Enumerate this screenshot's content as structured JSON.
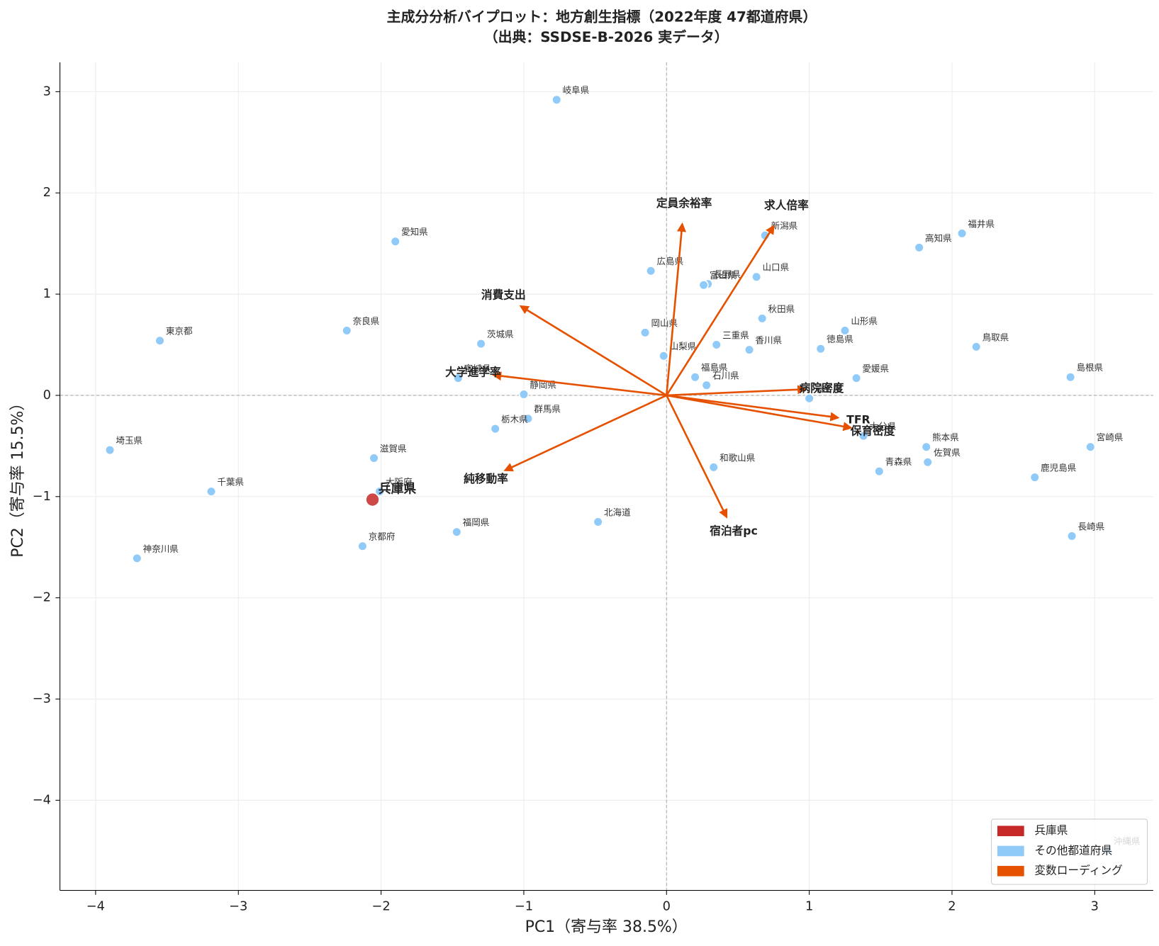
{
  "chart_data": {
    "type": "biplot",
    "title": "主成分分析バイプロット：地方創生指標（2022年度 47都道府県）",
    "subtitle": "（出典：SSDSE-B-2026 実データ）",
    "x_label": "PC1（寄与率 38.5%）",
    "y_label": "PC2（寄与率 15.5%）",
    "xlim": [
      -4.25,
      3.41
    ],
    "ylim": [
      -4.89,
      3.29
    ],
    "xticks": [
      {
        "value": -4,
        "label": "−4"
      },
      {
        "value": -3,
        "label": "−3"
      },
      {
        "value": -2,
        "label": "−2"
      },
      {
        "value": -1,
        "label": "−1"
      },
      0,
      1,
      2,
      3
    ],
    "yticks": [
      {
        "value": -4,
        "label": "−4"
      },
      {
        "value": -3,
        "label": "−3"
      },
      {
        "value": -2,
        "label": "−2"
      },
      {
        "value": -1,
        "label": "−1"
      },
      0,
      1,
      2,
      3
    ],
    "grid": true,
    "legend": "lower right",
    "series": [
      {
        "name": "兵庫県",
        "color": "#c62828",
        "labels": [
          "兵庫県"
        ],
        "x": [
          -2.06
        ],
        "y": [
          -1.03
        ]
      },
      {
        "name": "その他都道府県",
        "color": "#90caf9",
        "labels": [
          "岐阜県",
          "愛知県",
          "東京都",
          "奈良県",
          "茨城県",
          "宮城県",
          "静岡県",
          "群馬県",
          "栃木県",
          "埼玉県",
          "滋賀県",
          "千葉県",
          "大阪府",
          "神奈川県",
          "京都府",
          "福岡県",
          "北海道",
          "広島県",
          "岡山県",
          "山梨県",
          "長野県",
          "富山県",
          "山口県",
          "新潟県",
          "秋田県",
          "三重県",
          "香川県",
          "福島県",
          "石川県",
          "山形県",
          "徳島県",
          "愛媛県",
          "岩手県",
          "大分県",
          "和歌山県",
          "青森県",
          "熊本県",
          "佐賀県",
          "高知県",
          "福井県",
          "鳥取県",
          "島根県",
          "宮崎県",
          "鹿児島県",
          "長崎県",
          "沖縄県"
        ],
        "x": [
          -0.77,
          -1.9,
          -3.55,
          -2.24,
          -1.3,
          -1.46,
          -1.0,
          -0.97,
          -1.2,
          -3.9,
          -2.05,
          -3.19,
          -2.01,
          -3.71,
          -2.13,
          -1.47,
          -0.48,
          -0.11,
          -0.15,
          -0.02,
          0.29,
          0.26,
          0.63,
          0.69,
          0.67,
          0.35,
          0.58,
          0.2,
          0.28,
          1.25,
          1.08,
          1.33,
          1.0,
          1.38,
          0.33,
          1.49,
          1.82,
          1.83,
          1.77,
          2.07,
          2.17,
          2.83,
          2.97,
          2.58,
          2.84,
          3.09
        ],
        "y": [
          2.92,
          1.52,
          0.54,
          0.64,
          0.51,
          0.17,
          0.01,
          -0.23,
          -0.33,
          -0.54,
          -0.62,
          -0.95,
          -0.95,
          -1.61,
          -1.49,
          -1.35,
          -1.25,
          1.23,
          0.62,
          0.39,
          1.1,
          1.09,
          1.17,
          1.58,
          0.76,
          0.5,
          0.45,
          0.18,
          0.1,
          0.64,
          0.46,
          0.17,
          -0.03,
          -0.4,
          -0.71,
          -0.75,
          -0.51,
          -0.66,
          1.46,
          1.6,
          0.48,
          0.18,
          -0.51,
          -0.81,
          -1.39,
          -4.5
        ]
      },
      {
        "name": "変数ローディング",
        "color": "#e65100",
        "labels": [
          "定員余裕率",
          "求人倍率",
          "消費支出",
          "大学進学率",
          "病院密度",
          "TFR",
          "保育密度",
          "純移動率",
          "宿泊者pc"
        ],
        "x": [
          0.11,
          0.75,
          -1.02,
          -1.21,
          0.97,
          1.2,
          1.29,
          -1.13,
          0.42
        ],
        "y": [
          1.69,
          1.67,
          0.88,
          0.2,
          0.06,
          -0.22,
          -0.32,
          -0.74,
          -1.2
        ]
      }
    ]
  }
}
